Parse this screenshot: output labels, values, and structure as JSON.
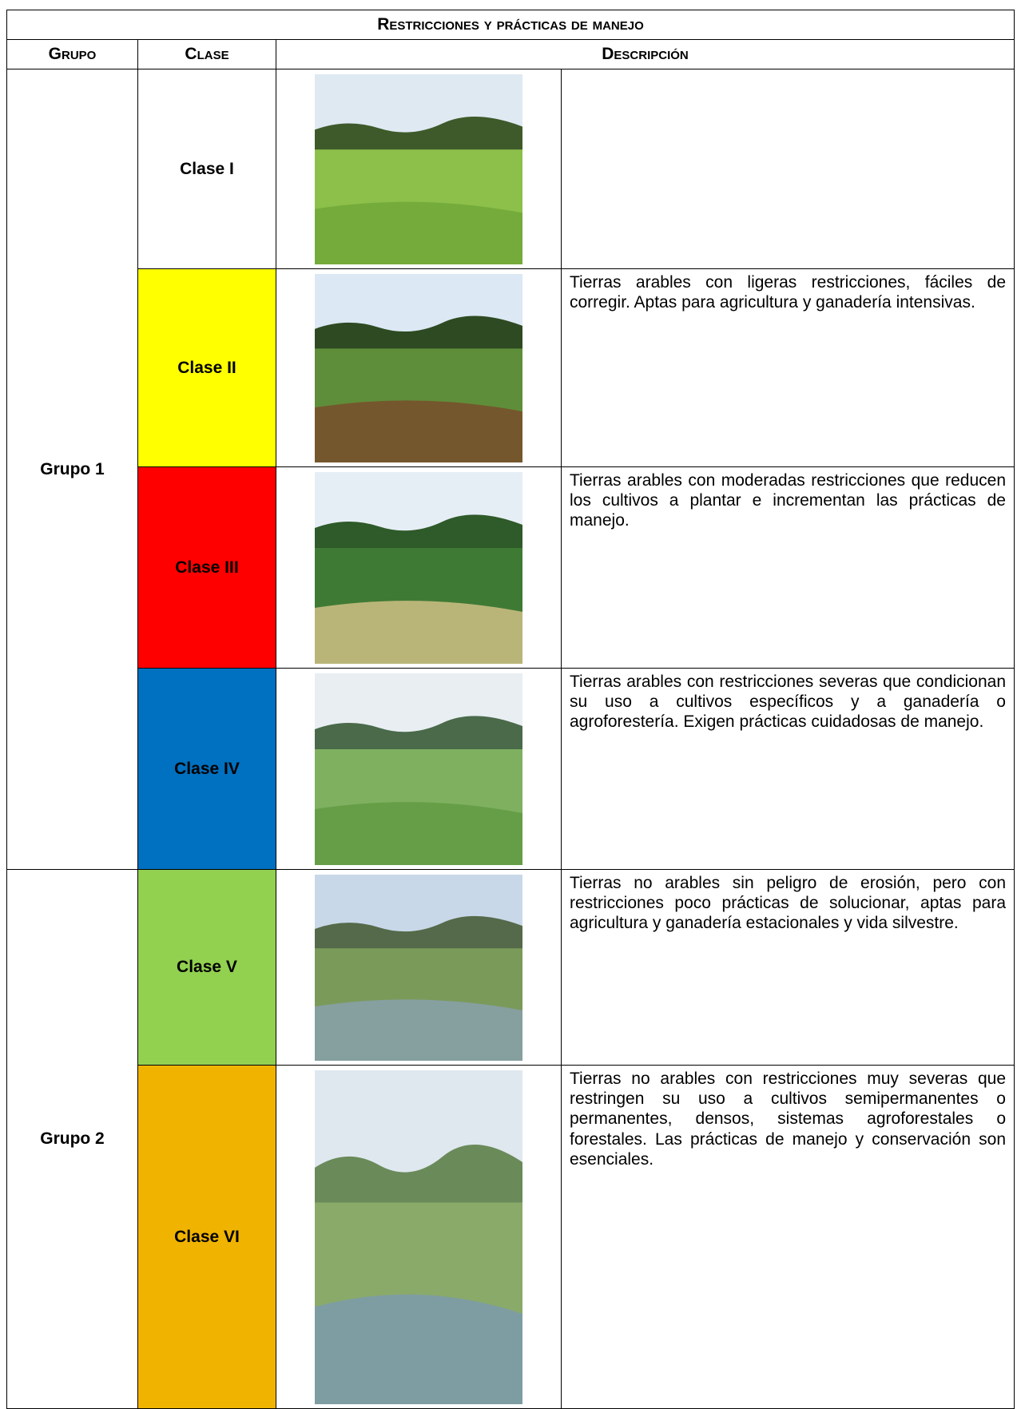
{
  "header": {
    "title": "Restricciones y prácticas de manejo",
    "columns": [
      "Grupo",
      "Clase",
      "Descripción"
    ]
  },
  "groups": [
    {
      "label": "Grupo 1",
      "classes": [
        {
          "label": "Clase I",
          "color": "#ffffff"
        },
        {
          "label": "Clase II",
          "color": "#ffff00",
          "description": "Tierras arables con ligeras restricciones, fáciles de corregir. Aptas para agricultura y ganadería intensivas."
        },
        {
          "label": "Clase III",
          "color": "#ff0000",
          "description": "Tierras arables con moderadas restricciones que reducen los cultivos a plantar e incrementan las prácticas de manejo."
        },
        {
          "label": "Clase IV",
          "color": "#0070c0",
          "description": "Tierras arables con restricciones severas que condicionan su uso a cultivos específicos y a ganadería o agroforestería. Exigen prácticas cuidadosas de manejo."
        }
      ]
    },
    {
      "label": "Grupo 2",
      "classes": [
        {
          "label": "Clase V",
          "color": "#92d050",
          "description": "Tierras no arables sin peligro de erosión, pero con restricciones poco prácticas de solucionar, aptas para agricultura y ganadería estacionales y vida silvestre."
        },
        {
          "label": "Clase VI",
          "color": "#f0b400",
          "description": "Tierras no arables con restricciones muy severas que restringen su uso a cultivos semipermanentes o permanentes, densos, sistemas agroforestales o forestales. Las prácticas de manejo y conservación son esenciales."
        }
      ]
    }
  ]
}
